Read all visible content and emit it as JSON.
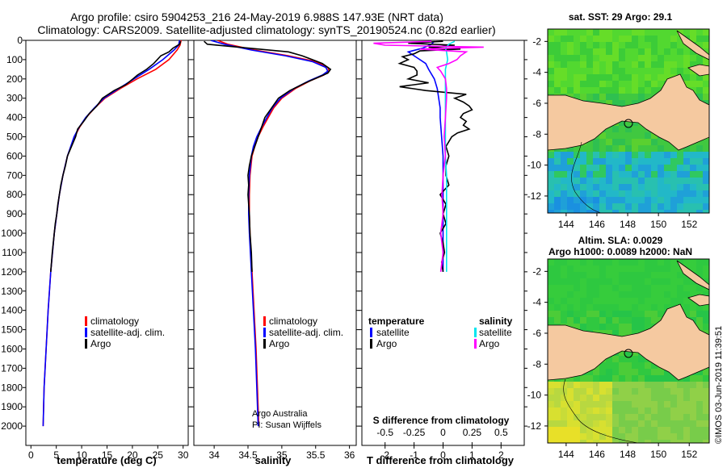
{
  "title_line1": "Argo profile: csiro 5904253_216 24-May-2019 6.988S 147.93E (NRT data)",
  "title_line2": "Climatology: CARS2009. Satellite-adjusted climatology: synTS_20190524.nc (0.82d earlier)",
  "credit_line1": "Argo Australia",
  "credit_line2": "PI: Susan Wijffels",
  "footer_stamp": "©IMOS 03-Jun-2019 11:39:51",
  "colors": {
    "climatology": "#ff0000",
    "satellite": "#0000ff",
    "argo": "#000000",
    "sat_salinity": "#00e5ee",
    "argo_salinity": "#ff00ff",
    "land": "#f5c9a0"
  },
  "chart_data": [
    {
      "id": "temperature",
      "type": "line",
      "xlabel": "temperature (deg C)",
      "ylabel": "",
      "xlim": [
        -1,
        31
      ],
      "ylim": [
        2100,
        0
      ],
      "xticks": [
        "0",
        "5",
        "10",
        "15",
        "20",
        "25",
        "30"
      ],
      "yticks": [
        "0",
        "100",
        "200",
        "300",
        "400",
        "500",
        "600",
        "700",
        "800",
        "900",
        "1000",
        "1100",
        "1200",
        "1300",
        "1400",
        "1500",
        "1600",
        "1700",
        "1800",
        "1900",
        "2000"
      ],
      "legend": [
        "climatology",
        "satellite-adj. clim.",
        "Argo"
      ],
      "series": [
        {
          "name": "climatology",
          "color": "#ff0000",
          "depth": [
            0,
            25,
            50,
            100,
            150,
            200,
            250,
            300,
            350,
            400,
            450,
            500,
            600,
            700,
            800,
            900,
            1000,
            1200,
            1400,
            1600,
            1800,
            2000
          ],
          "values": [
            29.6,
            29.4,
            28.8,
            27.2,
            24.6,
            20.9,
            17.6,
            14.6,
            12.6,
            10.9,
            9.6,
            8.6,
            7.2,
            6.3,
            5.6,
            5.1,
            4.6,
            3.9,
            3.4,
            3.0,
            2.6,
            2.4
          ]
        },
        {
          "name": "satellite-adj. clim.",
          "color": "#0000ff",
          "depth": [
            0,
            25,
            50,
            100,
            150,
            200,
            250,
            300,
            350,
            400,
            450,
            500,
            600,
            700,
            800,
            900,
            1000,
            1200,
            1400,
            1600,
            1800,
            2000
          ],
          "values": [
            29.3,
            29.1,
            28.2,
            26.0,
            23.3,
            20.3,
            17.3,
            14.4,
            12.5,
            10.8,
            9.5,
            8.5,
            7.2,
            6.3,
            5.6,
            5.1,
            4.6,
            3.9,
            3.4,
            3.0,
            2.6,
            2.4
          ]
        },
        {
          "name": "Argo",
          "color": "#000000",
          "depth": [
            5,
            20,
            40,
            60,
            80,
            100,
            120,
            150,
            180,
            200,
            230,
            260,
            300,
            340,
            380,
            420,
            460,
            500,
            550,
            600,
            650,
            700,
            750,
            800,
            850,
            900,
            950,
            1000,
            1100,
            1200
          ],
          "values": [
            29.5,
            29.3,
            28.0,
            27.2,
            25.6,
            24.9,
            24.2,
            22.8,
            21.0,
            20.1,
            18.7,
            16.4,
            14.1,
            13.0,
            11.5,
            10.4,
            9.2,
            8.8,
            8.0,
            7.2,
            6.8,
            6.3,
            5.9,
            5.6,
            5.3,
            5.1,
            4.8,
            4.6,
            4.2,
            3.9
          ]
        }
      ]
    },
    {
      "id": "salinity",
      "type": "line",
      "xlabel": "salinity",
      "ylabel": "",
      "xlim": [
        33.7,
        36.1
      ],
      "ylim": [
        2100,
        0
      ],
      "xticks": [
        "34",
        "34.5",
        "35",
        "35.5",
        "36"
      ],
      "legend": [
        "climatology",
        "satellite-adj. clim.",
        "Argo"
      ],
      "series": [
        {
          "name": "climatology",
          "color": "#ff0000",
          "depth": [
            0,
            20,
            50,
            80,
            110,
            140,
            160,
            180,
            210,
            250,
            300,
            350,
            400,
            450,
            500,
            550,
            600,
            700,
            800,
            900,
            1000,
            1200,
            1400,
            1600,
            1800,
            2000
          ],
          "values": [
            34.05,
            34.2,
            34.6,
            35.1,
            35.5,
            35.68,
            35.7,
            35.62,
            35.42,
            35.2,
            35.0,
            34.88,
            34.8,
            34.72,
            34.65,
            34.6,
            34.56,
            34.53,
            34.52,
            34.52,
            34.53,
            34.56,
            34.59,
            34.62,
            34.64,
            34.66
          ]
        },
        {
          "name": "satellite-adj. clim.",
          "color": "#0000ff",
          "depth": [
            0,
            20,
            50,
            80,
            110,
            140,
            160,
            180,
            210,
            250,
            300,
            350,
            400,
            450,
            500,
            550,
            600,
            700,
            800,
            900,
            1000,
            1200,
            1400,
            1600,
            1800,
            2000
          ],
          "values": [
            33.95,
            34.15,
            34.55,
            35.05,
            35.45,
            35.65,
            35.68,
            35.6,
            35.4,
            35.18,
            34.98,
            34.86,
            34.78,
            34.7,
            34.63,
            34.58,
            34.55,
            34.52,
            34.51,
            34.51,
            34.52,
            34.55,
            34.58,
            34.61,
            34.63,
            34.65
          ]
        },
        {
          "name": "Argo",
          "color": "#000000",
          "depth": [
            5,
            20,
            40,
            60,
            80,
            100,
            120,
            150,
            170,
            190,
            220,
            260,
            300,
            350,
            400,
            450,
            500,
            550,
            600,
            650,
            700,
            750,
            800,
            850,
            900,
            1000,
            1100,
            1200
          ],
          "values": [
            33.85,
            33.9,
            34.5,
            35.1,
            35.3,
            35.45,
            35.6,
            35.72,
            35.68,
            35.55,
            35.35,
            35.12,
            34.95,
            34.85,
            34.75,
            34.7,
            34.65,
            34.6,
            34.55,
            34.52,
            34.5,
            34.51,
            34.5,
            34.51,
            34.52,
            34.53,
            34.55,
            34.56
          ]
        }
      ]
    },
    {
      "id": "difference",
      "type": "line",
      "xlabel": "T difference from climatology",
      "xlabel_top": "S difference from climatology",
      "xlim": [
        -2.8,
        2.8
      ],
      "xlim_salinity": [
        -0.7,
        0.7
      ],
      "ylim": [
        2100,
        0
      ],
      "xticks": [
        "-2",
        "-1",
        "0",
        "1",
        "2"
      ],
      "xticks_salinity": [
        "-0.5",
        "-0.25",
        "0",
        "0.25",
        "0.5"
      ],
      "legend_left_title": "temperature",
      "legend_right_title": "salinity",
      "legend_left": [
        "satellite",
        "Argo"
      ],
      "legend_right": [
        "satellite",
        "Argo"
      ],
      "series": [
        {
          "name": "T satellite",
          "color": "#0000ff",
          "depth": [
            5,
            20,
            40,
            60,
            90,
            120,
            150,
            200,
            250,
            300,
            350,
            400,
            500,
            600,
            700,
            800,
            900,
            1000,
            1200
          ],
          "values": [
            -0.3,
            -0.4,
            -0.7,
            -1.2,
            -0.9,
            -0.6,
            -0.5,
            -0.3,
            -0.2,
            -0.15,
            -0.1,
            -0.1,
            -0.05,
            0,
            0,
            0,
            0,
            0,
            0
          ]
        },
        {
          "name": "T Argo",
          "color": "#000000",
          "depth": [
            5,
            15,
            25,
            35,
            45,
            55,
            70,
            85,
            100,
            120,
            140,
            160,
            180,
            200,
            220,
            240,
            260,
            280,
            300,
            320,
            340,
            360,
            380,
            400,
            420,
            440,
            460,
            480,
            500,
            550,
            600,
            650,
            700,
            750,
            800,
            850,
            900,
            950,
            1000,
            1050,
            1100,
            1150,
            1200
          ],
          "values": [
            0,
            -1.2,
            0.4,
            -0.5,
            0.6,
            -0.8,
            -1.0,
            -1.4,
            -1.2,
            -1.5,
            -1.0,
            -0.9,
            -0.9,
            -1.2,
            -0.5,
            -1.5,
            -0.6,
            0.8,
            0.4,
            0.7,
            0.9,
            1.0,
            0.7,
            0.6,
            0.8,
            0.7,
            0.9,
            0.5,
            0.3,
            0.1,
            0.2,
            0.1,
            0.1,
            0.2,
            -0.1,
            0.1,
            0.0,
            0.1,
            -0.1,
            0.0,
            0.05,
            -0.05,
            0.0
          ]
        },
        {
          "name": "S satellite",
          "color": "#00e5ee",
          "depth": [
            5,
            20,
            40,
            60,
            100,
            150,
            200,
            300,
            400,
            500,
            600,
            700,
            800,
            900,
            1000,
            1200
          ],
          "values": [
            0.1,
            0.05,
            0.02,
            0.03,
            0.04,
            0.02,
            0.02,
            0.02,
            0.02,
            0.02,
            0.02,
            0.03,
            0.03,
            0.03,
            0.03,
            0.03
          ]
        },
        {
          "name": "S Argo",
          "color": "#ff00ff",
          "depth": [
            5,
            15,
            25,
            35,
            45,
            60,
            80,
            100,
            120,
            140,
            160,
            180,
            200,
            250,
            300,
            400,
            500,
            600,
            700,
            800,
            900,
            1000,
            1100,
            1150,
            1200
          ],
          "values": [
            -0.1,
            -0.6,
            -0.5,
            0.35,
            -0.2,
            0.2,
            0.15,
            0.12,
            0.05,
            -0.05,
            -0.02,
            0.0,
            0.02,
            0.03,
            0.03,
            0.02,
            0.01,
            0.02,
            0.0,
            -0.01,
            0.0,
            -0.02,
            0.0,
            -0.01,
            -0.02
          ]
        }
      ]
    },
    {
      "id": "sst_map",
      "type": "heatmap",
      "title": "sat. SST: 29 Argo: 29.1",
      "xticks": [
        "144",
        "146",
        "148",
        "150",
        "152"
      ],
      "yticks": [
        "-2",
        "-4",
        "-6",
        "-8",
        "-10",
        "-12"
      ]
    },
    {
      "id": "sla_map",
      "type": "heatmap",
      "title_line1": "Altim. SLA: 0.0029",
      "title_line2": "Argo h1000: 0.0089 h2000: NaN",
      "xticks": [
        "144",
        "146",
        "148",
        "150",
        "152"
      ],
      "yticks": [
        "-2",
        "-4",
        "-6",
        "-8",
        "-10",
        "-12"
      ]
    }
  ]
}
